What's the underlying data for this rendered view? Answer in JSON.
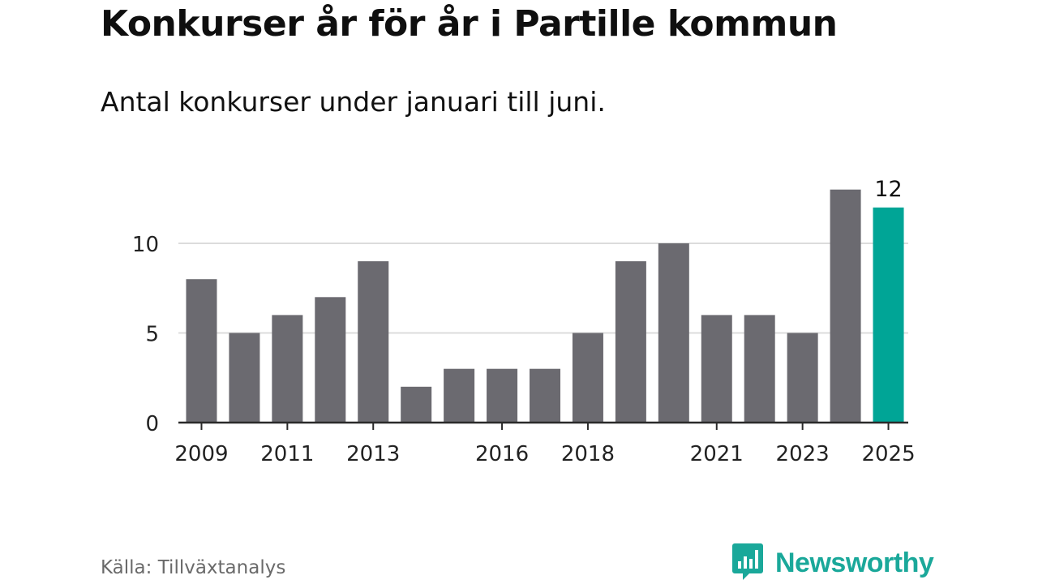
{
  "title": "Konkurser år för år i Partille kommun",
  "subtitle": "Antal konkurser under januari till juni.",
  "source": "Källa: Tillväxtanalys",
  "brand": {
    "name": "Newsworthy",
    "logo_icon": "newsworthy-bar-logo-icon",
    "color": "#1aa89a"
  },
  "chart_data": {
    "type": "bar",
    "categories": [
      "2009",
      "2010",
      "2011",
      "2012",
      "2013",
      "2014",
      "2015",
      "2016",
      "2017",
      "2018",
      "2019",
      "2020",
      "2021",
      "2022",
      "2023",
      "2024",
      "2025"
    ],
    "values": [
      8,
      5,
      6,
      7,
      9,
      2,
      3,
      3,
      3,
      5,
      9,
      10,
      6,
      6,
      5,
      13,
      12
    ],
    "x_tick_labels": [
      "2009",
      "2011",
      "2013",
      "2016",
      "2018",
      "2021",
      "2023",
      "2025"
    ],
    "y_ticks": [
      0,
      5,
      10
    ],
    "ylim": [
      0,
      13
    ],
    "bar_color": "#6b6a70",
    "highlight_color": "#00a596",
    "highlight_category": "2025",
    "annotations": [
      {
        "category": "2025",
        "text": "12"
      }
    ],
    "grid": true,
    "xlabel": "",
    "ylabel": ""
  }
}
